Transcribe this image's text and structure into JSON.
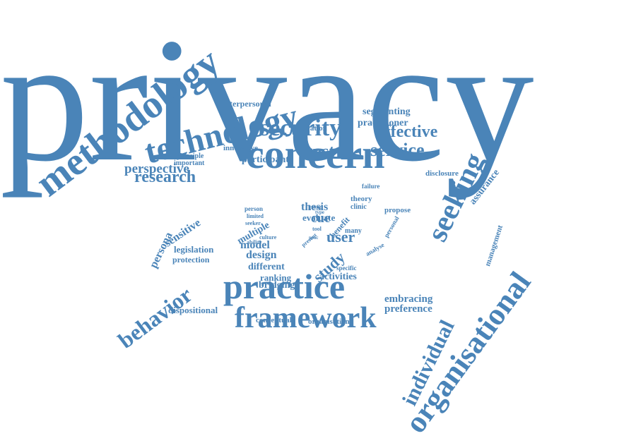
{
  "color": "#4a84b8",
  "words": [
    {
      "key": "privacy",
      "text": "privacy"
    },
    {
      "key": "concern",
      "text": "concern"
    },
    {
      "key": "practice",
      "text": "practice"
    },
    {
      "key": "framework",
      "text": "framework"
    },
    {
      "key": "methodology",
      "text": "methodology"
    },
    {
      "key": "technology",
      "text": "technology"
    },
    {
      "key": "security",
      "text": "security"
    },
    {
      "key": "effective",
      "text": "effective"
    },
    {
      "key": "trust",
      "text": "trust"
    },
    {
      "key": "service",
      "text": "service"
    },
    {
      "key": "research",
      "text": "research"
    },
    {
      "key": "perspective",
      "text": "perspective"
    },
    {
      "key": "participant",
      "text": "participant"
    },
    {
      "key": "innovative",
      "text": "innovative"
    },
    {
      "key": "motivation",
      "text": "motivation"
    },
    {
      "key": "interpersonal",
      "text": "interpersonal"
    },
    {
      "key": "segmenting",
      "text": "segmenting"
    },
    {
      "key": "practitioner",
      "text": "practitioner"
    },
    {
      "key": "principle",
      "text": "principle"
    },
    {
      "key": "important",
      "text": "important"
    },
    {
      "key": "seeking",
      "text": "seeking"
    },
    {
      "key": "assurance",
      "text": "assurance"
    },
    {
      "key": "disclosure",
      "text": "disclosure"
    },
    {
      "key": "failure",
      "text": "failure"
    },
    {
      "key": "theory",
      "text": "theory"
    },
    {
      "key": "clinic",
      "text": "clinic"
    },
    {
      "key": "propose",
      "text": "propose"
    },
    {
      "key": "personal",
      "text": "personal"
    },
    {
      "key": "management",
      "text": "management"
    },
    {
      "key": "organisational",
      "text": "organisational"
    },
    {
      "key": "individual",
      "text": "individual"
    },
    {
      "key": "behavior",
      "text": "behavior"
    },
    {
      "key": "persona",
      "text": "persona"
    },
    {
      "key": "sensitive",
      "text": "sensitive"
    },
    {
      "key": "legislation",
      "text": "legislation"
    },
    {
      "key": "protection",
      "text": "protection"
    },
    {
      "key": "dispositional",
      "text": "dispositional"
    },
    {
      "key": "conceptual",
      "text": "conceptual"
    },
    {
      "key": "organisation",
      "text": "organisation"
    },
    {
      "key": "embracing",
      "text": "embracing"
    },
    {
      "key": "preference",
      "text": "preference"
    },
    {
      "key": "person",
      "text": "person"
    },
    {
      "key": "limited",
      "text": "limited"
    },
    {
      "key": "seeker",
      "text": "seeker"
    },
    {
      "key": "multiple",
      "text": "multiple"
    },
    {
      "key": "ability",
      "text": "ability"
    },
    {
      "key": "culture",
      "text": "culture"
    },
    {
      "key": "model",
      "text": "model"
    },
    {
      "key": "design",
      "text": "design"
    },
    {
      "key": "different",
      "text": "different"
    },
    {
      "key": "ranking",
      "text": "ranking"
    },
    {
      "key": "bridging",
      "text": "bridging"
    },
    {
      "key": "evaluate",
      "text": "evaluate"
    },
    {
      "key": "thesis",
      "text": "thesis"
    },
    {
      "key": "cue",
      "text": "cue"
    },
    {
      "key": "group",
      "text": "group"
    },
    {
      "key": "type",
      "text": "type"
    },
    {
      "key": "tool",
      "text": "tool"
    },
    {
      "key": "proc",
      "text": "proc"
    },
    {
      "key": "present",
      "text": "present"
    },
    {
      "key": "benefit",
      "text": "benefit"
    },
    {
      "key": "many",
      "text": "many"
    },
    {
      "key": "analyse",
      "text": "analyse"
    },
    {
      "key": "user",
      "text": "user"
    },
    {
      "key": "study",
      "text": "study"
    },
    {
      "key": "specific",
      "text": "specific"
    },
    {
      "key": "activities",
      "text": "activities"
    }
  ]
}
